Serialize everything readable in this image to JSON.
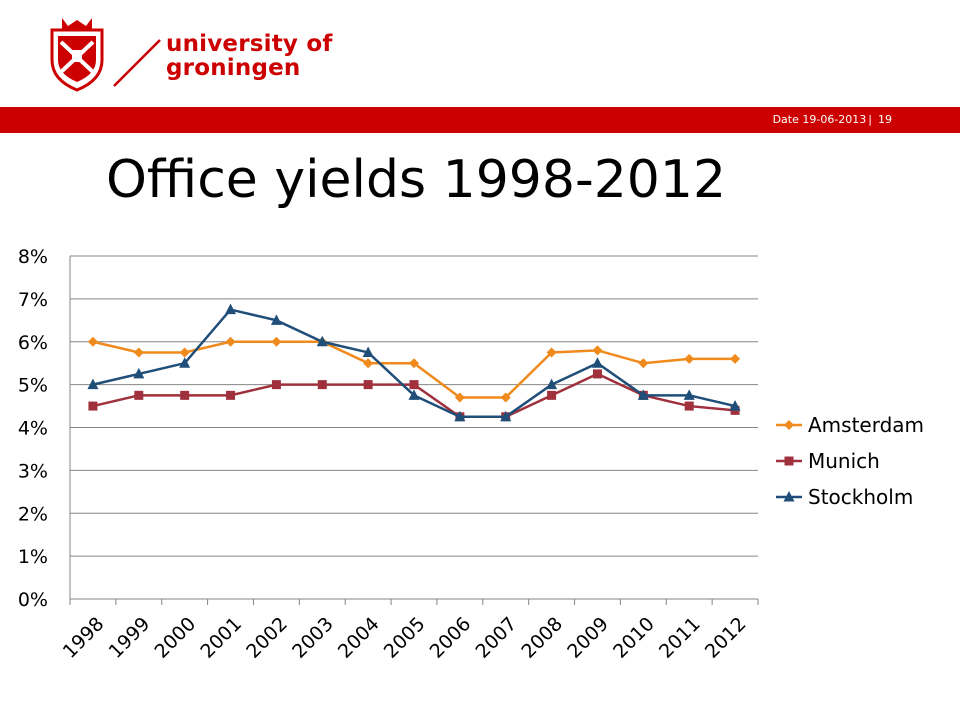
{
  "header": {
    "university_line1": "university of",
    "university_line2": "groningen",
    "date_label": "Date 19-06-2013",
    "separator": "|",
    "page_number": "19"
  },
  "slide": {
    "title": "Office yields 1998-2012"
  },
  "colors": {
    "brand_red": "#cc0000",
    "amsterdam": "#f08a1c",
    "munich": "#a0303c",
    "stockholm": "#1f4e79"
  },
  "chart_data": {
    "type": "line",
    "title": "",
    "xlabel": "",
    "ylabel": "",
    "categories": [
      "1998",
      "1999",
      "2000",
      "2001",
      "2002",
      "2003",
      "2004",
      "2005",
      "2006",
      "2007",
      "2008",
      "2009",
      "2010",
      "2011",
      "2012"
    ],
    "ylim": [
      0,
      8
    ],
    "y_ticks": [
      "0%",
      "1%",
      "2%",
      "3%",
      "4%",
      "5%",
      "6%",
      "7%",
      "8%"
    ],
    "grid": true,
    "legend_position": "right",
    "series": [
      {
        "name": "Amsterdam",
        "marker": "diamond",
        "color": "#f08a1c",
        "values": [
          6.0,
          5.75,
          5.75,
          6.0,
          6.0,
          6.0,
          5.5,
          5.5,
          4.7,
          4.7,
          5.75,
          5.8,
          5.5,
          5.6,
          5.6
        ]
      },
      {
        "name": "Munich",
        "marker": "square",
        "color": "#a0303c",
        "values": [
          4.5,
          4.75,
          4.75,
          4.75,
          5.0,
          5.0,
          5.0,
          5.0,
          4.25,
          4.25,
          4.75,
          5.25,
          4.75,
          4.5,
          4.4
        ]
      },
      {
        "name": "Stockholm",
        "marker": "triangle",
        "color": "#1f4e79",
        "values": [
          5.0,
          5.25,
          5.5,
          6.75,
          6.5,
          6.0,
          5.75,
          4.75,
          4.25,
          4.25,
          5.0,
          5.5,
          4.75,
          4.75,
          4.5
        ]
      }
    ]
  }
}
